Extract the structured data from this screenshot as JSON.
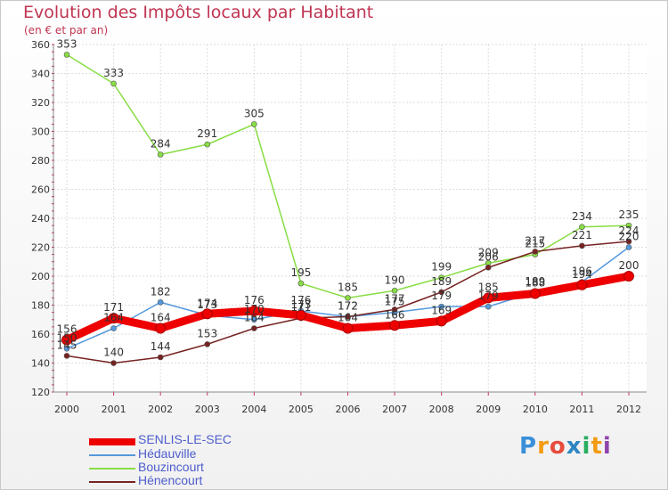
{
  "chart_data": {
    "type": "line",
    "title": "Evolution des Impôts locaux par Habitant",
    "subtitle": "(en € et par an)",
    "categories": [
      "2000",
      "2001",
      "2002",
      "2003",
      "2004",
      "2005",
      "2006",
      "2007",
      "2008",
      "2009",
      "2010",
      "2011",
      "2012"
    ],
    "ylim": [
      120,
      360
    ],
    "yticks": [
      120,
      140,
      160,
      180,
      200,
      220,
      240,
      260,
      280,
      300,
      320,
      340,
      360
    ],
    "grid": true,
    "legend_position": "bottom-left",
    "series": [
      {
        "name": "SENLIS-LE-SEC",
        "color": "#ee0000",
        "values": [
          156,
          171,
          164,
          174,
          176,
          173,
          164,
          166,
          169,
          185,
          188,
          194,
          200
        ],
        "labels": [
          "156",
          "171",
          "164",
          "174",
          "176",
          "173",
          "164",
          "166",
          "169",
          "185",
          "188",
          "194",
          "200"
        ]
      },
      {
        "name": "Hédauville",
        "color": "#5599dd",
        "values": [
          150,
          164,
          182,
          173,
          170,
          176,
          172,
          175,
          179,
          179,
          189,
          196,
          220
        ],
        "labels": [
          "150",
          "164",
          "182",
          "173",
          "170",
          "176",
          "172",
          "175",
          "179",
          "179",
          "189",
          "196",
          "220"
        ]
      },
      {
        "name": "Bouzincourt",
        "color": "#88dd44",
        "values": [
          353,
          333,
          284,
          291,
          305,
          195,
          185,
          190,
          199,
          209,
          215,
          234,
          235
        ],
        "labels": [
          "353",
          "333",
          "284",
          "291",
          "305",
          "195",
          "185",
          "190",
          "199",
          "209",
          "215",
          "234",
          "235"
        ]
      },
      {
        "name": "Hénencourt",
        "color": "#772222",
        "values": [
          145,
          140,
          144,
          153,
          164,
          171,
          172,
          177,
          189,
          206,
          217,
          221,
          224
        ],
        "labels": [
          "145",
          "140",
          "144",
          "153",
          "164",
          "171",
          "172",
          "177",
          "189",
          "206",
          "217",
          "221",
          "224"
        ]
      }
    ]
  },
  "logo": {
    "letters": [
      "P",
      "r",
      "o",
      "x",
      "i",
      "t",
      "i"
    ],
    "colors": [
      "#3a8fd8",
      "#f39c12",
      "#e74c3c",
      "#2e86c1",
      "#27ae60",
      "#f39c12",
      "#8e44ad"
    ]
  }
}
